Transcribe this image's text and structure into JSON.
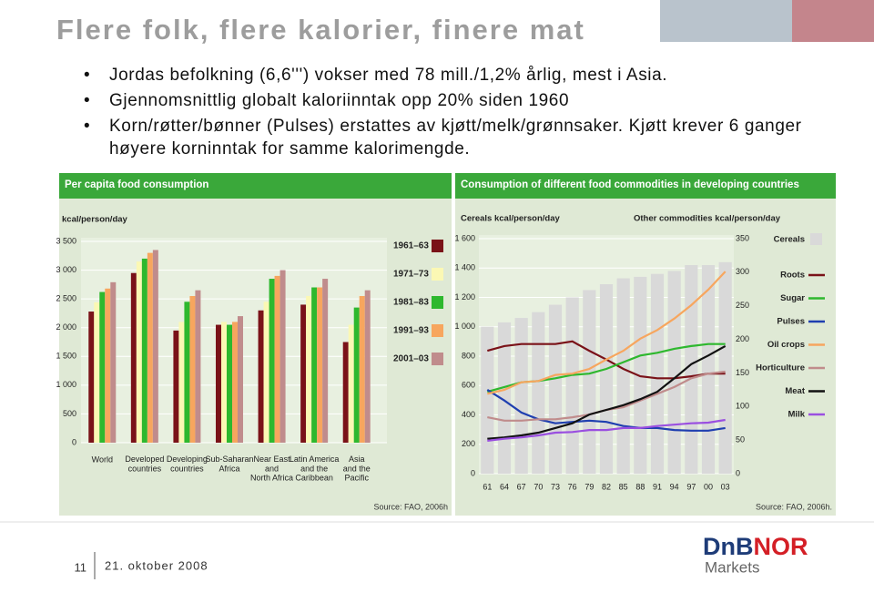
{
  "slide": {
    "title": "Flere folk, flere kalorier, finere mat",
    "bullets": [
      "Jordas befolkning (6,6''') vokser med 78 mill./1,2% årlig, mest i Asia.",
      "Gjennomsnittlig globalt kaloriinntak opp 20% siden 1960",
      "Korn/røtter/bønner (Pulses) erstattes av kjøtt/melk/grønnsaker. Kjøtt krever 6 ganger høyere korninntak for samme kalorimengde."
    ],
    "page_number": "11",
    "date": "21. oktober 2008",
    "logo": {
      "name1": "DnB",
      "name2": "NOR",
      "sub": "Markets"
    }
  },
  "chart_data": [
    {
      "type": "bar",
      "title": "Per capita food consumption",
      "y_label": "kcal/person/day",
      "source": "Source: FAO, 2006h",
      "categories": [
        "World",
        "Developed\ncountries",
        "Developing\ncountries",
        "Sub-Saharan\nAfrica",
        "Near East\nand\nNorth Africa",
        "Latin America\nand the\nCaribbean",
        "Asia\nand the\nPacific"
      ],
      "series": [
        {
          "name": "1961–63",
          "color": "#7a1218",
          "values": [
            2280,
            2950,
            1950,
            2050,
            2300,
            2400,
            1750
          ]
        },
        {
          "name": "1971–73",
          "color": "#fbf8b4",
          "values": [
            2440,
            3150,
            2100,
            2100,
            2450,
            2550,
            2050
          ]
        },
        {
          "name": "1981–83",
          "color": "#2eb82e",
          "values": [
            2620,
            3200,
            2450,
            2050,
            2850,
            2700,
            2350
          ]
        },
        {
          "name": "1991–93",
          "color": "#f7a65e",
          "values": [
            2680,
            3300,
            2550,
            2100,
            2900,
            2700,
            2550
          ]
        },
        {
          "name": "2001–03",
          "color": "#c08c8c",
          "values": [
            2790,
            3350,
            2650,
            2200,
            3000,
            2850,
            2650
          ]
        }
      ],
      "ylim": [
        0,
        3500
      ],
      "yticks": [
        0,
        500,
        {
          "value": 1000,
          "label": "1 000"
        },
        {
          "value": 1500,
          "label": "1 500"
        },
        {
          "value": 2000,
          "label": "2 000"
        },
        {
          "value": 2500,
          "label": "2 500"
        },
        {
          "value": 3000,
          "label": "3 000"
        },
        {
          "value": 3500,
          "label": "3 500"
        }
      ],
      "grid": true
    },
    {
      "type": "combo",
      "title": "Consumption of different food commodities in developing countries",
      "y_label": "Cereals kcal/person/day",
      "y2_label": "Other commodities kcal/person/day",
      "source": "Source: FAO, 2006h.",
      "categories": [
        "61",
        "64",
        "67",
        "70",
        "73",
        "76",
        "79",
        "82",
        "85",
        "88",
        "91",
        "94",
        "97",
        "00",
        "03"
      ],
      "series": [
        {
          "name": "Cereals",
          "color": "#d9d9d9",
          "axis": "y",
          "values": [
            1000,
            1030,
            1060,
            1100,
            1150,
            1200,
            1250,
            1290,
            1330,
            1340,
            1360,
            1380,
            1420,
            1420,
            1440
          ]
        },
        {
          "name": "Roots",
          "color": "#7a1218",
          "axis": "y2",
          "values": [
            183,
            190,
            193,
            193,
            193,
            197,
            183,
            170,
            156,
            145,
            142,
            142,
            145,
            149,
            149
          ]
        },
        {
          "name": "Sugar",
          "color": "#2eb82e",
          "axis": "y2",
          "values": [
            122,
            129,
            136,
            138,
            142,
            147,
            149,
            156,
            166,
            176,
            180,
            186,
            190,
            193,
            193
          ]
        },
        {
          "name": "Pulses",
          "color": "#1f3fb0",
          "axis": "y2",
          "values": [
            125,
            109,
            91,
            81,
            75,
            77,
            79,
            77,
            71,
            68,
            68,
            65,
            64,
            64,
            68
          ]
        },
        {
          "name": "Oil crops",
          "color": "#f7a65e",
          "axis": "y2",
          "values": [
            119,
            125,
            136,
            138,
            147,
            149,
            156,
            170,
            183,
            201,
            214,
            231,
            251,
            274,
            301
          ]
        },
        {
          "name": "Horticulture",
          "color": "#c08c8c",
          "axis": "y2",
          "values": [
            84,
            79,
            79,
            81,
            81,
            84,
            88,
            95,
            99,
            109,
            119,
            129,
            142,
            149,
            152
          ]
        },
        {
          "name": "Meat",
          "color": "#111111",
          "axis": "y2",
          "values": [
            52,
            54,
            57,
            61,
            68,
            75,
            88,
            95,
            102,
            111,
            122,
            142,
            163,
            176,
            190
          ]
        },
        {
          "name": "Milk",
          "color": "#9a4fe0",
          "axis": "y2",
          "values": [
            49,
            52,
            54,
            57,
            61,
            62,
            65,
            65,
            68,
            68,
            71,
            73,
            75,
            76,
            80
          ]
        }
      ],
      "ylim": [
        0,
        1600
      ],
      "yticks": [
        0,
        200,
        400,
        600,
        800,
        {
          "value": 1000,
          "label": "1 000"
        },
        {
          "value": 1200,
          "label": "1 200"
        },
        {
          "value": 1400,
          "label": "1 400"
        },
        {
          "value": 1600,
          "label": "1 600"
        }
      ],
      "y2lim": [
        0,
        350
      ],
      "y2ticks": [
        0,
        50,
        100,
        150,
        200,
        250,
        300,
        350
      ],
      "grid": true
    }
  ]
}
